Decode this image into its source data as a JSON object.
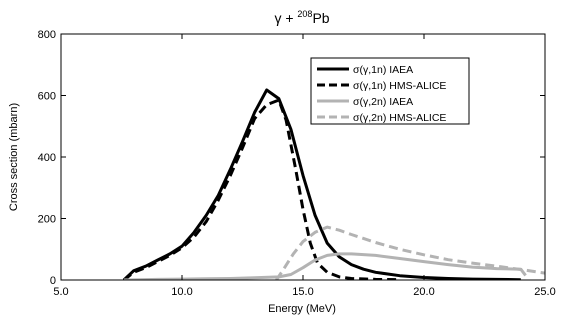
{
  "chart_data": {
    "type": "line",
    "title": {
      "prefix": "γ + ",
      "sup": "208",
      "suffix": "Pb"
    },
    "xlabel": "Energy (MeV)",
    "ylabel": "Cross section (mbarn)",
    "xlim": [
      5.0,
      25.0
    ],
    "ylim": [
      0,
      800
    ],
    "x_ticks": [
      5.0,
      10.0,
      15.0,
      20.0,
      25.0
    ],
    "x_tick_labels": [
      "5.0",
      "10.0",
      "15.0",
      "20.0",
      "25.0"
    ],
    "y_ticks": [
      0,
      200,
      400,
      600,
      800
    ],
    "y_tick_labels": [
      "0",
      "200",
      "400",
      "600",
      "800"
    ],
    "grid": false,
    "legend_position": "top-right",
    "series": [
      {
        "name": "σ(γ,1n) IAEA",
        "color": "#000000",
        "dash": "solid",
        "points": [
          [
            7.6,
            0
          ],
          [
            8.0,
            30
          ],
          [
            8.5,
            45
          ],
          [
            9.0,
            65
          ],
          [
            9.5,
            85
          ],
          [
            10.0,
            110
          ],
          [
            10.5,
            155
          ],
          [
            11.0,
            210
          ],
          [
            11.5,
            275
          ],
          [
            12.0,
            360
          ],
          [
            12.5,
            450
          ],
          [
            13.0,
            545
          ],
          [
            13.5,
            618
          ],
          [
            14.0,
            590
          ],
          [
            14.5,
            490
          ],
          [
            15.0,
            340
          ],
          [
            15.5,
            210
          ],
          [
            16.0,
            120
          ],
          [
            16.5,
            75
          ],
          [
            17.0,
            50
          ],
          [
            17.5,
            35
          ],
          [
            18.0,
            25
          ],
          [
            19.0,
            14
          ],
          [
            20.0,
            8
          ],
          [
            21.0,
            5
          ],
          [
            22.0,
            3
          ],
          [
            23.0,
            2
          ],
          [
            24.0,
            1
          ]
        ]
      },
      {
        "name": "σ(γ,1n) HMS-ALICE",
        "color": "#000000",
        "dash": "dashed",
        "points": [
          [
            7.6,
            0
          ],
          [
            8.0,
            25
          ],
          [
            8.5,
            40
          ],
          [
            9.0,
            60
          ],
          [
            9.5,
            80
          ],
          [
            10.0,
            105
          ],
          [
            10.5,
            140
          ],
          [
            11.0,
            190
          ],
          [
            11.5,
            260
          ],
          [
            12.0,
            340
          ],
          [
            12.5,
            430
          ],
          [
            13.0,
            525
          ],
          [
            13.5,
            570
          ],
          [
            14.0,
            585
          ],
          [
            14.3,
            520
          ],
          [
            14.7,
            360
          ],
          [
            15.0,
            230
          ],
          [
            15.3,
            120
          ],
          [
            15.6,
            55
          ],
          [
            16.0,
            25
          ],
          [
            16.5,
            10
          ],
          [
            17.0,
            5
          ],
          [
            18.0,
            2
          ],
          [
            19.0,
            1
          ]
        ]
      },
      {
        "name": "σ(γ,2n) IAEA",
        "color": "#b3b3b3",
        "dash": "solid",
        "points": [
          [
            7.6,
            0
          ],
          [
            9.0,
            2
          ],
          [
            10.0,
            3
          ],
          [
            11.0,
            4
          ],
          [
            12.0,
            5
          ],
          [
            13.0,
            7
          ],
          [
            14.0,
            10
          ],
          [
            14.5,
            18
          ],
          [
            15.0,
            40
          ],
          [
            15.5,
            65
          ],
          [
            16.0,
            80
          ],
          [
            16.5,
            85
          ],
          [
            17.0,
            85
          ],
          [
            18.0,
            80
          ],
          [
            19.0,
            70
          ],
          [
            20.0,
            60
          ],
          [
            21.0,
            50
          ],
          [
            22.0,
            42
          ],
          [
            23.0,
            37
          ],
          [
            24.0,
            35
          ],
          [
            24.2,
            15
          ]
        ]
      },
      {
        "name": "σ(γ,2n) HMS-ALICE",
        "color": "#b3b3b3",
        "dash": "dashed",
        "points": [
          [
            13.9,
            0
          ],
          [
            14.2,
            35
          ],
          [
            14.6,
            85
          ],
          [
            15.0,
            125
          ],
          [
            15.5,
            155
          ],
          [
            16.0,
            172
          ],
          [
            16.5,
            162
          ],
          [
            17.0,
            148
          ],
          [
            18.0,
            122
          ],
          [
            19.0,
            100
          ],
          [
            20.0,
            82
          ],
          [
            21.0,
            66
          ],
          [
            22.0,
            55
          ],
          [
            23.0,
            45
          ],
          [
            24.0,
            34
          ],
          [
            25.0,
            22
          ]
        ]
      }
    ]
  }
}
